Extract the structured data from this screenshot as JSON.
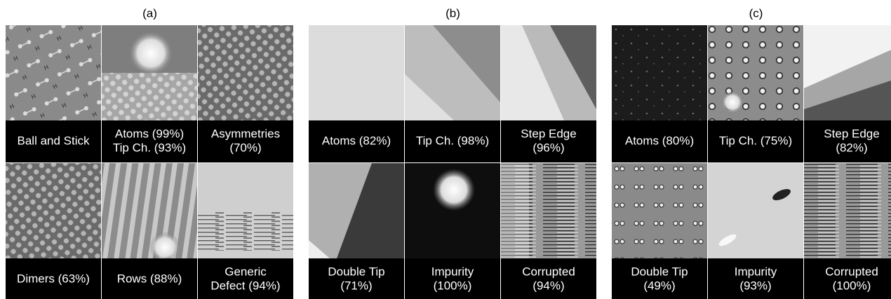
{
  "panels": [
    {
      "label": "(a)",
      "tiles": [
        {
          "lines": [
            "Ball and Stick"
          ]
        },
        {
          "lines": [
            "Atoms (99%)",
            "Tip Ch. (93%)"
          ]
        },
        {
          "lines": [
            "Asymmetries",
            "(70%)"
          ]
        },
        {
          "lines": [
            "Dimers (63%)"
          ]
        },
        {
          "lines": [
            "Rows (88%)"
          ]
        },
        {
          "lines": [
            "Generic",
            "Defect (94%)"
          ]
        }
      ]
    },
    {
      "label": "(b)",
      "tiles": [
        {
          "lines": [
            "Atoms (82%)"
          ]
        },
        {
          "lines": [
            "Tip Ch. (98%)"
          ]
        },
        {
          "lines": [
            "Step Edge",
            "(96%)"
          ]
        },
        {
          "lines": [
            "Double Tip",
            "(71%)"
          ]
        },
        {
          "lines": [
            "Impurity",
            "(100%)"
          ]
        },
        {
          "lines": [
            "Corrupted",
            "(94%)"
          ]
        }
      ]
    },
    {
      "label": "(c)",
      "tiles": [
        {
          "lines": [
            "Atoms (80%)"
          ]
        },
        {
          "lines": [
            "Tip Ch. (75%)"
          ]
        },
        {
          "lines": [
            "Step Edge",
            "(82%)"
          ]
        },
        {
          "lines": [
            "Double Tip",
            "(49%)"
          ]
        },
        {
          "lines": [
            "Impurity",
            "(93%)"
          ]
        },
        {
          "lines": [
            "Corrupted",
            "(100%)"
          ]
        }
      ]
    }
  ]
}
